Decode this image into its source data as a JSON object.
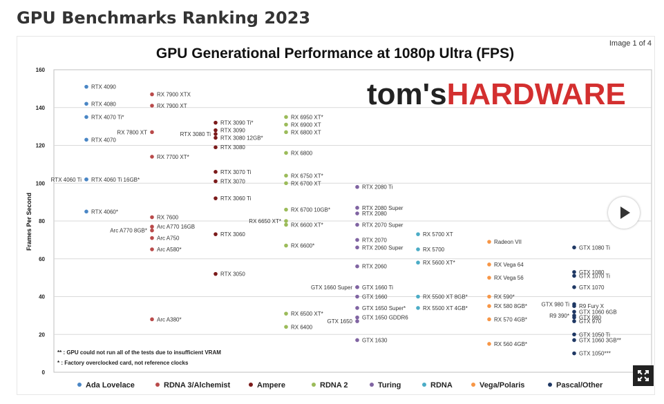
{
  "page": {
    "title": "GPU Benchmarks Ranking 2023",
    "image_counter": "Image 1 of 4"
  },
  "brand": {
    "logo_text_1": "tom's",
    "logo_text_2": "HARDWARE",
    "logo_color_1": "#222222",
    "logo_color_2": "#d32f2f"
  },
  "controls": {
    "play_icon": "play-icon",
    "expand_icon": "expand-icon"
  },
  "chart_data": {
    "type": "scatter",
    "title": "GPU Generational Performance at 1080p Ultra (FPS)",
    "xlabel": "",
    "ylabel": "Frames Per Second",
    "ylim": [
      0,
      160
    ],
    "yticks": [
      "0",
      "20",
      "40",
      "60",
      "80",
      "100",
      "120",
      "140",
      "160"
    ],
    "grid": true,
    "legend_position": "bottom",
    "notes": [
      "** : GPU could not run all of the tests due to insufficient VRAM",
      "* : Factory overclocked card, not reference clocks"
    ],
    "series": [
      {
        "name": "Ada Lovelace",
        "color": "#4a86c5",
        "points": [
          {
            "label": "RTX 4090",
            "y": 151,
            "side": "r"
          },
          {
            "label": "RTX 4080",
            "y": 142,
            "side": "r"
          },
          {
            "label": "RTX 4070 Ti*",
            "y": 135,
            "side": "r"
          },
          {
            "label": "RTX 4070",
            "y": 123,
            "side": "r"
          },
          {
            "label": "RTX 4060 Ti",
            "y": 102,
            "side": "l"
          },
          {
            "label": "RTX 4060 Ti 16GB*",
            "y": 102,
            "side": "r"
          },
          {
            "label": "RTX 4060*",
            "y": 85,
            "side": "r"
          }
        ]
      },
      {
        "name": "RDNA 3/Alchemist",
        "color": "#b94a4a",
        "points": [
          {
            "label": "RX 7900 XTX",
            "y": 147,
            "side": "r"
          },
          {
            "label": "RX 7900 XT",
            "y": 141,
            "side": "r"
          },
          {
            "label": "RX 7800 XT",
            "y": 127,
            "side": "l"
          },
          {
            "label": "RX 7700 XT*",
            "y": 114,
            "side": "r"
          },
          {
            "label": "RX 7600",
            "y": 82,
            "side": "r"
          },
          {
            "label": "Arc A770 16GB",
            "y": 77,
            "side": "r"
          },
          {
            "label": "Arc A770 8GB*",
            "y": 75,
            "side": "l"
          },
          {
            "label": "Arc A750",
            "y": 71,
            "side": "r"
          },
          {
            "label": "Arc A580*",
            "y": 65,
            "side": "r"
          },
          {
            "label": "Arc A380*",
            "y": 28,
            "side": "r"
          }
        ]
      },
      {
        "name": "Ampere",
        "color": "#7b1a1a",
        "points": [
          {
            "label": "RTX 3090 Ti*",
            "y": 132,
            "side": "r"
          },
          {
            "label": "RTX 3090",
            "y": 128,
            "side": "r"
          },
          {
            "label": "RTX 3080 Ti",
            "y": 126,
            "side": "l"
          },
          {
            "label": "RTX 3080 12GB*",
            "y": 124,
            "side": "r"
          },
          {
            "label": "RTX 3080",
            "y": 119,
            "side": "r"
          },
          {
            "label": "RTX 3070 Ti",
            "y": 106,
            "side": "r"
          },
          {
            "label": "RTX 3070",
            "y": 101,
            "side": "r"
          },
          {
            "label": "RTX 3060 Ti",
            "y": 92,
            "side": "r"
          },
          {
            "label": "RTX 3060",
            "y": 73,
            "side": "r"
          },
          {
            "label": "RTX 3050",
            "y": 52,
            "side": "r"
          }
        ]
      },
      {
        "name": "RDNA 2",
        "color": "#9bbb59",
        "points": [
          {
            "label": "RX 6950 XT*",
            "y": 135,
            "side": "r"
          },
          {
            "label": "RX 6900 XT",
            "y": 131,
            "side": "r"
          },
          {
            "label": "RX 6800 XT",
            "y": 127,
            "side": "r"
          },
          {
            "label": "RX 6800",
            "y": 116,
            "side": "r"
          },
          {
            "label": "RX 6750 XT*",
            "y": 104,
            "side": "r"
          },
          {
            "label": "RX 6700 XT",
            "y": 100,
            "side": "r"
          },
          {
            "label": "RX 6700 10GB*",
            "y": 86,
            "side": "r"
          },
          {
            "label": "RX 6650 XT*",
            "y": 80,
            "side": "l"
          },
          {
            "label": "RX 6600 XT*",
            "y": 78,
            "side": "r"
          },
          {
            "label": "RX 6600*",
            "y": 67,
            "side": "r"
          },
          {
            "label": "RX 6500 XT*",
            "y": 31,
            "side": "r"
          },
          {
            "label": "RX 6400",
            "y": 24,
            "side": "r"
          }
        ]
      },
      {
        "name": "Turing",
        "color": "#8064a2",
        "points": [
          {
            "label": "RTX 2080 Ti",
            "y": 98,
            "side": "r"
          },
          {
            "label": "RTX 2080 Super",
            "y": 87,
            "side": "r"
          },
          {
            "label": "RTX 2080",
            "y": 84,
            "side": "r"
          },
          {
            "label": "RTX 2070 Super",
            "y": 78,
            "side": "r"
          },
          {
            "label": "RTX 2070",
            "y": 70,
            "side": "r"
          },
          {
            "label": "RTX 2060 Super",
            "y": 66,
            "side": "r"
          },
          {
            "label": "RTX 2060",
            "y": 56,
            "side": "r"
          },
          {
            "label": "GTX 1660 Super",
            "y": 45,
            "side": "l"
          },
          {
            "label": "GTX 1660 Ti",
            "y": 45,
            "side": "r"
          },
          {
            "label": "GTX 1660",
            "y": 40,
            "side": "r"
          },
          {
            "label": "GTX 1650 Super*",
            "y": 34,
            "side": "r"
          },
          {
            "label": "GTX 1650",
            "y": 27,
            "side": "l"
          },
          {
            "label": "GTX 1650 GDDR6",
            "y": 29,
            "side": "r"
          },
          {
            "label": "GTX 1630",
            "y": 17,
            "side": "r"
          }
        ]
      },
      {
        "name": "RDNA",
        "color": "#4bacc6",
        "points": [
          {
            "label": "RX 5700 XT",
            "y": 73,
            "side": "r"
          },
          {
            "label": "RX 5700",
            "y": 65,
            "side": "r"
          },
          {
            "label": "RX 5600 XT*",
            "y": 58,
            "side": "r"
          },
          {
            "label": "RX 5500 XT 8GB*",
            "y": 40,
            "side": "r"
          },
          {
            "label": "RX 5500 XT 4GB*",
            "y": 34,
            "side": "r"
          }
        ]
      },
      {
        "name": "Vega/Polaris",
        "color": "#f79646",
        "points": [
          {
            "label": "Radeon VII",
            "y": 69,
            "side": "r"
          },
          {
            "label": "RX Vega 64",
            "y": 57,
            "side": "r"
          },
          {
            "label": "RX Vega 56",
            "y": 50,
            "side": "r"
          },
          {
            "label": "RX 590*",
            "y": 40,
            "side": "r"
          },
          {
            "label": "RX 580 8GB*",
            "y": 35,
            "side": "r"
          },
          {
            "label": "RX 570 4GB*",
            "y": 28,
            "side": "r"
          },
          {
            "label": "RX 560 4GB*",
            "y": 15,
            "side": "r"
          }
        ]
      },
      {
        "name": "Pascal/Other",
        "color": "#1f3864",
        "points": [
          {
            "label": "GTX 1080 Ti",
            "y": 66,
            "side": "r"
          },
          {
            "label": "GTX 1080",
            "y": 53,
            "side": "r"
          },
          {
            "label": "GTX 1070 Ti",
            "y": 51,
            "side": "r"
          },
          {
            "label": "GTX 1070",
            "y": 45,
            "side": "r"
          },
          {
            "label": "GTX 980 Ti",
            "y": 36,
            "side": "l"
          },
          {
            "label": "R9 Fury X",
            "y": 35,
            "side": "r"
          },
          {
            "label": "GTX 1060 6GB",
            "y": 32,
            "side": "r"
          },
          {
            "label": "R9 390*",
            "y": 30,
            "side": "l"
          },
          {
            "label": "GTX 980",
            "y": 29,
            "side": "r"
          },
          {
            "label": "GTX 970",
            "y": 27,
            "side": "r"
          },
          {
            "label": "GTX 1050 Ti",
            "y": 20,
            "side": "r"
          },
          {
            "label": "GTX 1060 3GB**",
            "y": 17,
            "side": "r"
          },
          {
            "label": "GTX 1050***",
            "y": 10,
            "side": "r"
          }
        ]
      }
    ]
  }
}
